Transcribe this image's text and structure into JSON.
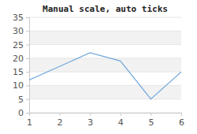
{
  "chart_data": {
    "type": "line",
    "title": "Manual scale, auto ticks",
    "x": [
      1,
      2,
      3,
      4,
      5,
      6
    ],
    "values": [
      12,
      17,
      22,
      19,
      5,
      15
    ],
    "color": "#6fa8dc",
    "xlim": [
      1,
      6
    ],
    "xticks": [
      1,
      2,
      3,
      4,
      5,
      6
    ],
    "ylim": [
      0,
      35
    ],
    "yticks": [
      0,
      5,
      10,
      15,
      20,
      25,
      30,
      35
    ],
    "grid": true
  }
}
